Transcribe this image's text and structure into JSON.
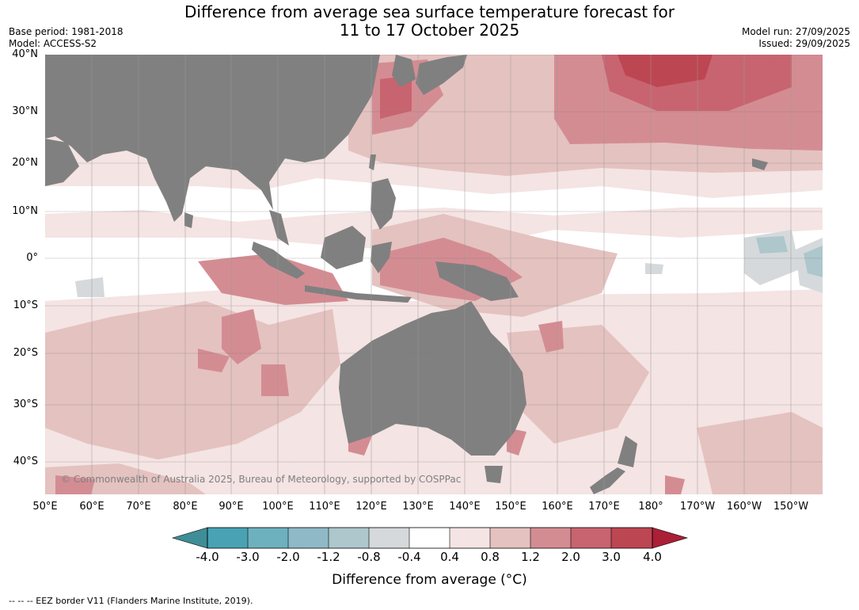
{
  "title": {
    "line1": "Difference from average sea surface temperature forecast for",
    "line2": "11 to 17 October 2025"
  },
  "meta": {
    "base_period": "Base period: 1981-2018",
    "model": "Model: ACCESS-S2",
    "model_run": "Model run: 27/09/2025",
    "issued": "Issued: 29/09/2025"
  },
  "map": {
    "lat_labels": [
      "40°N",
      "30°N",
      "20°N",
      "10°N",
      "0°",
      "10°S",
      "20°S",
      "30°S",
      "40°S"
    ],
    "lon_labels": [
      "50°E",
      "60°E",
      "70°E",
      "80°E",
      "90°E",
      "100°E",
      "110°E",
      "120°E",
      "130°E",
      "140°E",
      "150°E",
      "160°E",
      "170°E",
      "180°",
      "170°W",
      "160°W",
      "150°W"
    ],
    "copyright": "© Commonwealth of Australia 2025, Bureau of Meteorology, supported by COSPPac",
    "land_color": "#808080"
  },
  "colorbar": {
    "title": "Difference from average (°C)",
    "labels": [
      "-4.0",
      "-3.0",
      "-2.0",
      "-1.2",
      "-0.8",
      "-0.4",
      "0.4",
      "0.8",
      "1.2",
      "2.0",
      "3.0",
      "4.0"
    ],
    "colors": [
      "#3f8e97",
      "#49a2b3",
      "#6eb1be",
      "#8fb9c6",
      "#adc7cc",
      "#d5d9db",
      "#ffffff",
      "#f4e4e3",
      "#e4c2c0",
      "#d48c93",
      "#c86470",
      "#bd4653",
      "#ab1f37"
    ]
  },
  "footnote": "--  --  -- EEZ border V11 (Flanders Marine Institute, 2019)."
}
